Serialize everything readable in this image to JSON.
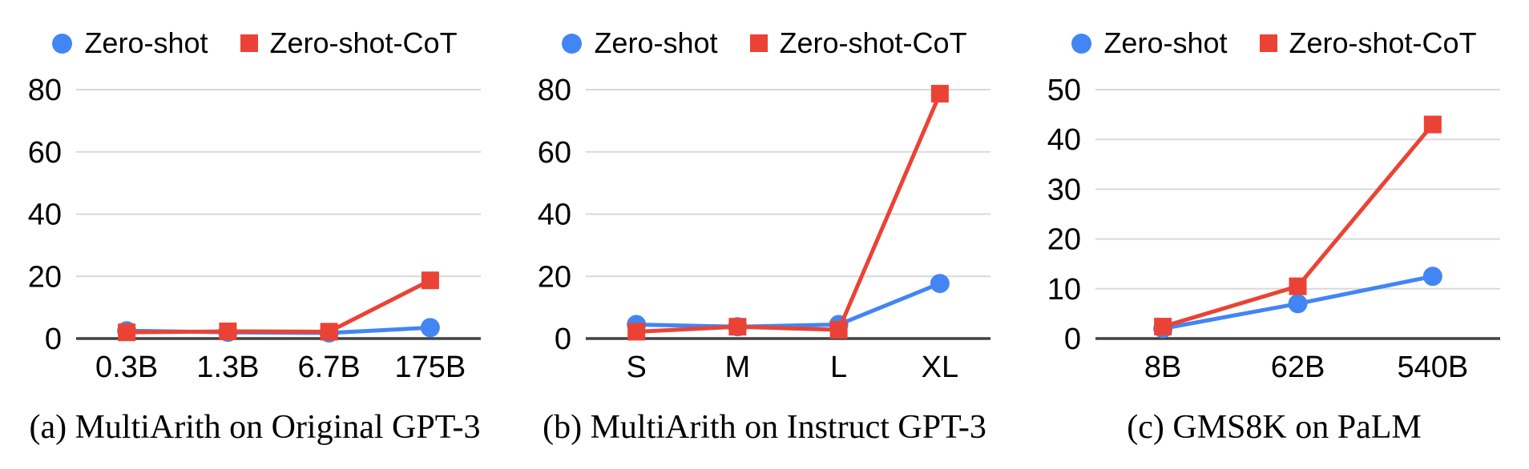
{
  "figure": {
    "background": "#ffffff",
    "text_color": "#000000",
    "gridline_color": "#d9d9d9",
    "axis_color": "#424242",
    "accent_blue": "#4285f4",
    "accent_red": "#ea4335"
  },
  "chart_data": [
    {
      "id": "a",
      "type": "line",
      "caption": "(a) MultiArith on Original GPT-3",
      "categories": [
        "0.3B",
        "1.3B",
        "6.7B",
        "175B"
      ],
      "series": [
        {
          "name": "Zero-shot",
          "marker": "circle",
          "color": "#4285f4",
          "values": [
            2.5,
            2.0,
            1.8,
            3.5
          ]
        },
        {
          "name": "Zero-shot-CoT",
          "marker": "square",
          "color": "#ea4335",
          "values": [
            2.0,
            2.3,
            2.2,
            18.7
          ]
        }
      ],
      "xlabel": "",
      "ylabel": "",
      "ylim": [
        0,
        80
      ],
      "yticks": [
        0,
        20,
        40,
        60,
        80
      ],
      "grid": true,
      "legend_position": "top"
    },
    {
      "id": "b",
      "type": "line",
      "caption": "(b) MultiArith on Instruct GPT-3",
      "categories": [
        "S",
        "M",
        "L",
        "XL"
      ],
      "series": [
        {
          "name": "Zero-shot",
          "marker": "circle",
          "color": "#4285f4",
          "values": [
            4.5,
            3.8,
            4.5,
            17.7
          ]
        },
        {
          "name": "Zero-shot-CoT",
          "marker": "square",
          "color": "#ea4335",
          "values": [
            2.2,
            3.8,
            2.8,
            78.7
          ]
        }
      ],
      "xlabel": "",
      "ylabel": "",
      "ylim": [
        0,
        80
      ],
      "yticks": [
        0,
        20,
        40,
        60,
        80
      ],
      "grid": true,
      "legend_position": "top"
    },
    {
      "id": "c",
      "type": "line",
      "caption": "(c) GMS8K on PaLM",
      "categories": [
        "8B",
        "62B",
        "540B"
      ],
      "series": [
        {
          "name": "Zero-shot",
          "marker": "circle",
          "color": "#4285f4",
          "values": [
            2.0,
            7.0,
            12.5
          ]
        },
        {
          "name": "Zero-shot-CoT",
          "marker": "square",
          "color": "#ea4335",
          "values": [
            2.4,
            10.5,
            43.0
          ]
        }
      ],
      "xlabel": "",
      "ylabel": "",
      "ylim": [
        0,
        50
      ],
      "yticks": [
        0,
        10,
        20,
        30,
        40,
        50
      ],
      "grid": true,
      "legend_position": "top"
    }
  ]
}
